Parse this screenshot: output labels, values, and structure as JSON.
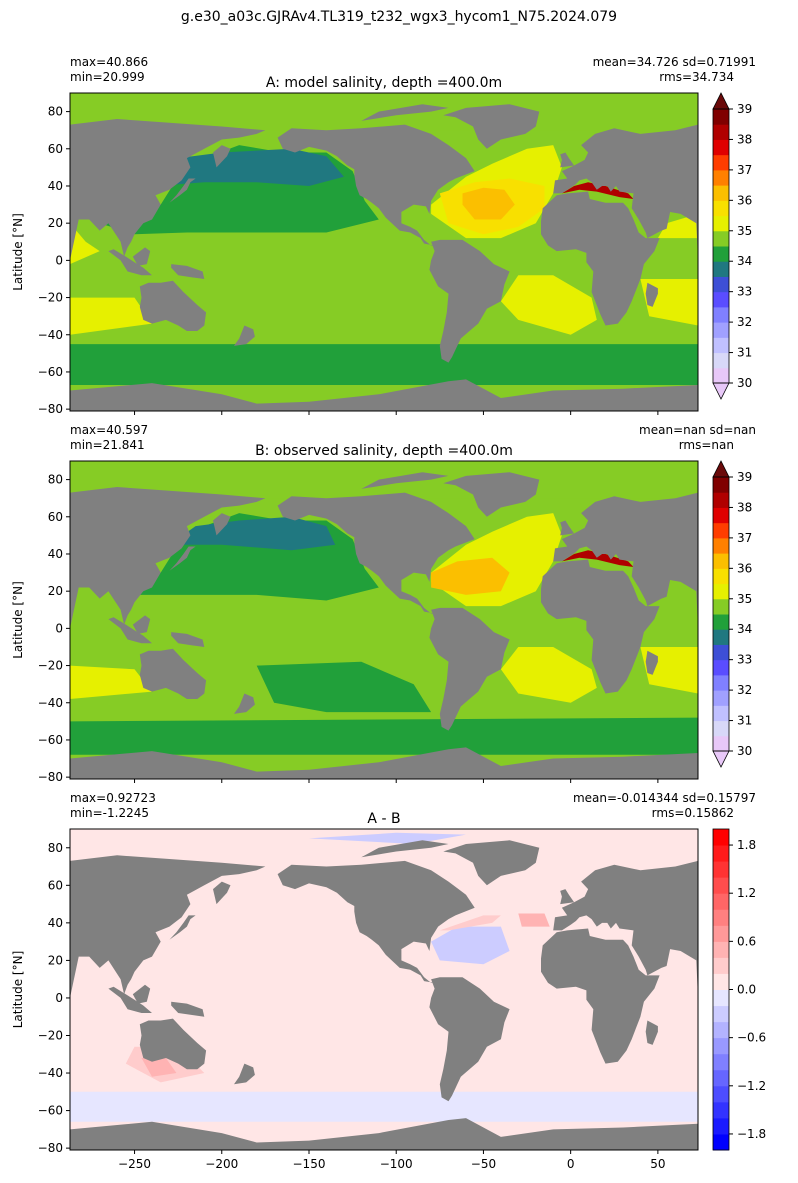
{
  "figure": {
    "suptitle": "g.e30_a03c.GJRAv4.TL319_t232_wgx3_hycom1_N75.2024.079"
  },
  "colors": {
    "land": "#808080",
    "frame": "#000000"
  },
  "chart_data": [
    {
      "type": "heatmap",
      "title": "A: model salinity, depth =400.0m",
      "stats_left": [
        "max=40.866",
        "min=20.999"
      ],
      "stats_right": [
        "mean=34.726 sd=0.71991",
        "rms=34.734"
      ],
      "ylabel": "Latitude [°N]",
      "xlabel": "",
      "xlim": [
        -287,
        73
      ],
      "ylim": [
        -81,
        90
      ],
      "xticks": [
        -250,
        -200,
        -150,
        -100,
        -50,
        0,
        50
      ],
      "show_xticklabels": false,
      "yticks": [
        -80,
        -60,
        -40,
        -20,
        0,
        20,
        40,
        60,
        80
      ],
      "colorbar": {
        "levels": [
          30,
          30.5,
          31,
          31.5,
          32,
          32.5,
          33,
          33.5,
          34,
          34.5,
          35,
          35.5,
          36,
          36.5,
          37,
          37.5,
          38,
          38.5,
          39
        ],
        "colors": [
          "#e8c8f8",
          "#d8d8f8",
          "#c0c0ff",
          "#a0a0ff",
          "#8080ff",
          "#5a4dff",
          "#3d4fd6",
          "#207880",
          "#21a03a",
          "#86cc25",
          "#e6f000",
          "#f8e000",
          "#fbbf00",
          "#ff8000",
          "#ff3d00",
          "#e00000",
          "#b00000",
          "#800000"
        ],
        "under": "#e8c8f8",
        "over": "#6a0a0a",
        "ticks": [
          30,
          31,
          32,
          33,
          34,
          35,
          36,
          37,
          38,
          39
        ],
        "extend": "both"
      }
    },
    {
      "type": "heatmap",
      "title": "B: observed salinity, depth =400.0m",
      "stats_left": [
        "max=40.597",
        "min=21.841"
      ],
      "stats_right": [
        "mean=nan sd=nan",
        "rms=nan"
      ],
      "ylabel": "Latitude [°N]",
      "xlabel": "",
      "xlim": [
        -287,
        73
      ],
      "ylim": [
        -81,
        90
      ],
      "xticks": [
        -250,
        -200,
        -150,
        -100,
        -50,
        0,
        50
      ],
      "show_xticklabels": false,
      "yticks": [
        -80,
        -60,
        -40,
        -20,
        0,
        20,
        40,
        60,
        80
      ],
      "colorbar": {
        "levels": [
          30,
          30.5,
          31,
          31.5,
          32,
          32.5,
          33,
          33.5,
          34,
          34.5,
          35,
          35.5,
          36,
          36.5,
          37,
          37.5,
          38,
          38.5,
          39
        ],
        "colors": [
          "#e8c8f8",
          "#d8d8f8",
          "#c0c0ff",
          "#a0a0ff",
          "#8080ff",
          "#5a4dff",
          "#3d4fd6",
          "#207880",
          "#21a03a",
          "#86cc25",
          "#e6f000",
          "#f8e000",
          "#fbbf00",
          "#ff8000",
          "#ff3d00",
          "#e00000",
          "#b00000",
          "#800000"
        ],
        "under": "#e8c8f8",
        "over": "#6a0a0a",
        "ticks": [
          30,
          31,
          32,
          33,
          34,
          35,
          36,
          37,
          38,
          39
        ],
        "extend": "both"
      }
    },
    {
      "type": "heatmap",
      "title": "A - B",
      "stats_left": [
        "max=0.92723",
        "min=-1.2245"
      ],
      "stats_right": [
        "mean=-0.014344 sd=0.15797",
        "rms=0.15862"
      ],
      "ylabel": "Latitude [°N]",
      "xlabel": "",
      "xlim": [
        -287,
        73
      ],
      "ylim": [
        -81,
        90
      ],
      "xticks": [
        -250,
        -200,
        -150,
        -100,
        -50,
        0,
        50
      ],
      "show_xticklabels": true,
      "yticks": [
        -80,
        -60,
        -40,
        -20,
        0,
        20,
        40,
        60,
        80
      ],
      "colorbar": {
        "levels": [
          -2.0,
          -1.8,
          -1.6,
          -1.4,
          -1.2,
          -1.0,
          -0.8,
          -0.6,
          -0.4,
          -0.2,
          0.0,
          0.2,
          0.4,
          0.6,
          0.8,
          1.0,
          1.2,
          1.4,
          1.6,
          1.8,
          2.0
        ],
        "colors": [
          "#0000ff",
          "#1a1aff",
          "#3333ff",
          "#4d4dff",
          "#6666ff",
          "#8080ff",
          "#9999ff",
          "#b3b3ff",
          "#ccccff",
          "#e6e6ff",
          "#ffe6e6",
          "#ffcccc",
          "#ffb3b3",
          "#ff9999",
          "#ff8080",
          "#ff6666",
          "#ff4d4d",
          "#ff3333",
          "#ff1a1a",
          "#ff0000"
        ],
        "ticks": [
          -1.8,
          -1.2,
          -0.6,
          0.0,
          0.6,
          1.2,
          1.8
        ],
        "tick_labels": [
          "−1.8",
          "−1.2",
          "−0.6",
          "0.0",
          "0.6",
          "1.2",
          "1.8"
        ],
        "extend": "neither"
      }
    }
  ]
}
